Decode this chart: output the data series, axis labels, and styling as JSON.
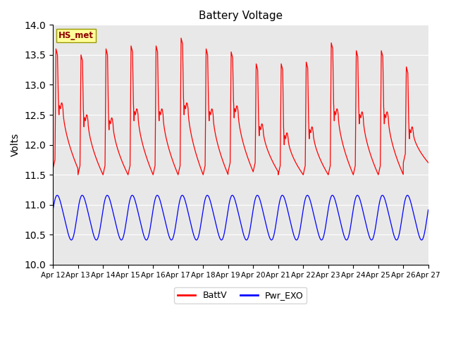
{
  "title": "Battery Voltage",
  "ylabel": "Volts",
  "ylim": [
    10.0,
    14.0
  ],
  "yticks": [
    10.0,
    10.5,
    11.0,
    11.5,
    12.0,
    12.5,
    13.0,
    13.5,
    14.0
  ],
  "xticklabels": [
    "Apr 12",
    "Apr 13",
    "Apr 14",
    "Apr 15",
    "Apr 16",
    "Apr 17",
    "Apr 18",
    "Apr 19",
    "Apr 20",
    "Apr 21",
    "Apr 22",
    "Apr 23",
    "Apr 24",
    "Apr 25",
    "Apr 26",
    "Apr 27"
  ],
  "station_label": "HS_met",
  "legend_entries": [
    "BattV",
    "Pwr_EXO"
  ],
  "batt_color": "#FF0000",
  "pwr_color": "#0000FF",
  "bg_color": "#E8E8E8",
  "title_fontsize": 11,
  "batt_peaks": [
    13.6,
    13.5,
    13.6,
    13.65,
    13.65,
    13.78,
    13.6,
    13.55,
    13.35,
    13.35,
    13.38,
    13.7,
    13.57,
    13.57,
    13.3
  ],
  "batt_mins": [
    11.6,
    11.5,
    11.5,
    11.5,
    11.5,
    11.5,
    11.5,
    11.55,
    11.55,
    11.5,
    11.5,
    11.5,
    11.5,
    11.5,
    11.7
  ],
  "batt_notch": [
    12.6,
    12.4,
    12.35,
    12.5,
    12.5,
    12.6,
    12.5,
    12.55,
    12.25,
    12.1,
    12.2,
    12.5,
    12.45,
    12.45,
    12.2
  ],
  "pwr_max": 11.15,
  "pwr_min": 10.42,
  "n_days": 15
}
